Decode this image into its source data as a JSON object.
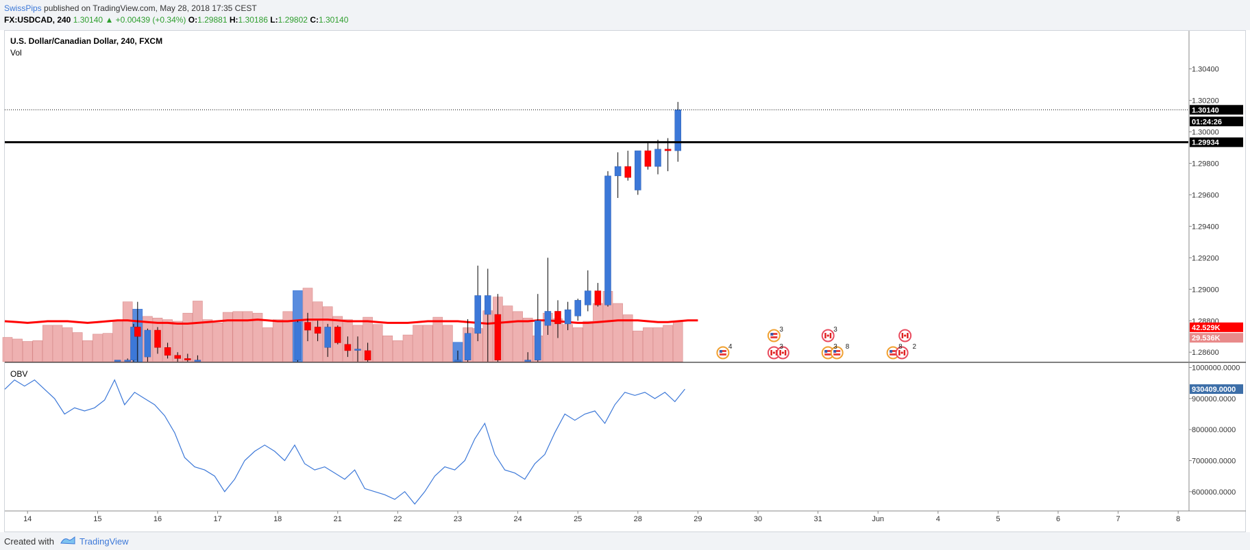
{
  "header": {
    "author": "SwissPips",
    "published": "published on TradingView.com, May 28, 2018 17:35 CEST",
    "symbol": "FX:USDCAD, 240",
    "last": "1.30140",
    "change_arrow": "▲",
    "change": "+0.00439 (+0.34%)",
    "o_label": "O:",
    "o": "1.29881",
    "h_label": "H:",
    "h": "1.30186",
    "l_label": "L:",
    "l": "1.29802",
    "c_label": "C:",
    "c": "1.30140"
  },
  "footer": {
    "created_with": "Created with",
    "brand": "TradingView"
  },
  "colors": {
    "up": "#3c78d8",
    "down": "#ff0000",
    "ma": "#ff0000",
    "obv": "#3c78d8",
    "volume": "#eba3a3",
    "volume_blue": "#3c78d8",
    "resistance": "#000000"
  },
  "chart_data": {
    "type": "candlestick",
    "title": "U.S. Dollar/Canadian Dollar, 240, FXCM",
    "overlay_label": "Vol",
    "indicator_label": "OBV",
    "price_ylim": [
      1.2854,
      1.3062
    ],
    "price_ticks": [
      "1.30400",
      "1.30200",
      "1.30000",
      "1.29800",
      "1.29600",
      "1.29400",
      "1.29200",
      "1.29000",
      "1.28800",
      "1.28600"
    ],
    "obv_ylim": [
      540000,
      1010000
    ],
    "obv_ticks": [
      "1000000.0000",
      "900000.0000",
      "800000.0000",
      "700000.0000",
      "600000.0000"
    ],
    "x_labels": [
      "14",
      "15",
      "16",
      "17",
      "18",
      "21",
      "22",
      "23",
      "24",
      "25",
      "28",
      "29",
      "30",
      "31",
      "Jun",
      "4",
      "5",
      "6",
      "7",
      "8"
    ],
    "x_label_bar": [
      2,
      9,
      15,
      21,
      27,
      33,
      39,
      45,
      51,
      57,
      63,
      69,
      75,
      81,
      87,
      93,
      99,
      105,
      111,
      117
    ],
    "resistance": 1.29934,
    "resistance_label": "1.29934",
    "last_price_label": "1.30140",
    "countdown": "01:24:26",
    "last_price": 1.3014,
    "vol_labels": [
      "42.529K",
      "29.536K"
    ],
    "vol_label_values": [
      42.529,
      29.536
    ],
    "vol_ylim": [
      0,
      100
    ],
    "obv_last_label": "930409.0000",
    "obv_last": 930409,
    "candles": [
      {
        "i": 11,
        "o": 1.2855,
        "h": 1.2855,
        "l": 1.2855,
        "c": 1.2855
      },
      {
        "i": 12,
        "o": 1.2855,
        "h": 1.2856,
        "l": 1.2854,
        "c": 1.2855
      },
      {
        "i": 12.6,
        "o": 1.2855,
        "h": 1.2878,
        "l": 1.2854,
        "c": 1.2876
      },
      {
        "i": 13,
        "o": 1.2876,
        "h": 1.2892,
        "l": 1.2854,
        "c": 1.287
      },
      {
        "i": 14,
        "o": 1.2857,
        "h": 1.2875,
        "l": 1.2854,
        "c": 1.2874
      },
      {
        "i": 15,
        "o": 1.2874,
        "h": 1.2876,
        "l": 1.2859,
        "c": 1.2863
      },
      {
        "i": 16,
        "o": 1.2863,
        "h": 1.2866,
        "l": 1.2856,
        "c": 1.2858
      },
      {
        "i": 17,
        "o": 1.2858,
        "h": 1.286,
        "l": 1.2854,
        "c": 1.2856
      },
      {
        "i": 18,
        "o": 1.2856,
        "h": 1.2859,
        "l": 1.2854,
        "c": 1.2855
      },
      {
        "i": 19,
        "o": 1.2855,
        "h": 1.2858,
        "l": 1.2854,
        "c": 1.2855
      },
      {
        "i": 29,
        "o": 1.2855,
        "h": 1.288,
        "l": 1.2854,
        "c": 1.2879
      },
      {
        "i": 30,
        "o": 1.2879,
        "h": 1.2885,
        "l": 1.2867,
        "c": 1.2874
      },
      {
        "i": 31,
        "o": 1.2876,
        "h": 1.288,
        "l": 1.2867,
        "c": 1.2872
      },
      {
        "i": 32,
        "o": 1.2863,
        "h": 1.2878,
        "l": 1.2857,
        "c": 1.2876
      },
      {
        "i": 33,
        "o": 1.2876,
        "h": 1.2877,
        "l": 1.2865,
        "c": 1.2866
      },
      {
        "i": 34,
        "o": 1.2865,
        "h": 1.287,
        "l": 1.2857,
        "c": 1.2861
      },
      {
        "i": 35,
        "o": 1.2862,
        "h": 1.287,
        "l": 1.2854,
        "c": 1.2862
      },
      {
        "i": 36,
        "o": 1.2861,
        "h": 1.2866,
        "l": 1.2854,
        "c": 1.2855
      },
      {
        "i": 45,
        "o": 1.2855,
        "h": 1.2861,
        "l": 1.2854,
        "c": 1.2855
      },
      {
        "i": 46,
        "o": 1.2855,
        "h": 1.2881,
        "l": 1.2854,
        "c": 1.2872
      },
      {
        "i": 47,
        "o": 1.2872,
        "h": 1.2915,
        "l": 1.2867,
        "c": 1.2896
      },
      {
        "i": 48,
        "o": 1.2884,
        "h": 1.2913,
        "l": 1.2854,
        "c": 1.2896
      },
      {
        "i": 49,
        "o": 1.2884,
        "h": 1.2897,
        "l": 1.2854,
        "c": 1.2855
      },
      {
        "i": 52,
        "o": 1.2855,
        "h": 1.286,
        "l": 1.2854,
        "c": 1.2855
      },
      {
        "i": 53,
        "o": 1.2855,
        "h": 1.2897,
        "l": 1.2854,
        "c": 1.288
      },
      {
        "i": 54,
        "o": 1.2877,
        "h": 1.292,
        "l": 1.2871,
        "c": 1.2886
      },
      {
        "i": 55,
        "o": 1.2886,
        "h": 1.2893,
        "l": 1.2869,
        "c": 1.2878
      },
      {
        "i": 56,
        "o": 1.2878,
        "h": 1.2892,
        "l": 1.2874,
        "c": 1.2887
      },
      {
        "i": 57,
        "o": 1.2883,
        "h": 1.2894,
        "l": 1.288,
        "c": 1.2893
      },
      {
        "i": 58,
        "o": 1.289,
        "h": 1.2912,
        "l": 1.2886,
        "c": 1.2899
      },
      {
        "i": 59,
        "o": 1.2899,
        "h": 1.2904,
        "l": 1.2889,
        "c": 1.289
      },
      {
        "i": 60,
        "o": 1.289,
        "h": 1.2975,
        "l": 1.2889,
        "c": 1.2972
      },
      {
        "i": 61,
        "o": 1.2972,
        "h": 1.2987,
        "l": 1.2958,
        "c": 1.2978
      },
      {
        "i": 62,
        "o": 1.2978,
        "h": 1.2988,
        "l": 1.2969,
        "c": 1.2971
      },
      {
        "i": 63,
        "o": 1.2963,
        "h": 1.2988,
        "l": 1.296,
        "c": 1.2988
      },
      {
        "i": 64,
        "o": 1.2988,
        "h": 1.2993,
        "l": 1.2976,
        "c": 1.2978
      },
      {
        "i": 65,
        "o": 1.2978,
        "h": 1.2995,
        "l": 1.2973,
        "c": 1.2989
      },
      {
        "i": 66,
        "o": 1.2989,
        "h": 1.2996,
        "l": 1.2975,
        "c": 1.2988
      },
      {
        "i": 67,
        "o": 1.2988,
        "h": 1.3019,
        "l": 1.2981,
        "c": 1.3014
      }
    ],
    "volume": [
      30,
      28,
      25,
      26,
      45,
      45,
      42,
      36,
      26,
      34,
      35,
      50,
      74,
      65,
      56,
      54,
      52,
      50,
      60,
      75,
      52,
      48,
      61,
      62,
      62,
      60,
      42,
      52,
      62,
      88,
      91,
      74,
      68,
      56,
      52,
      45,
      55,
      46,
      32,
      26,
      33,
      45,
      45,
      55,
      45,
      24,
      42,
      41,
      63,
      80,
      69,
      62,
      54,
      32,
      60,
      53,
      46,
      42,
      50,
      72,
      87,
      72,
      58,
      38,
      42,
      42,
      45,
      50
    ],
    "volume_blue": [
      13,
      29,
      45
    ],
    "ma": [
      50,
      49,
      48,
      49,
      50,
      50,
      50,
      49,
      48,
      49,
      50,
      51,
      51,
      50,
      49,
      48,
      48,
      47,
      47,
      48,
      49,
      50,
      51,
      51,
      51,
      52,
      51,
      50,
      50,
      51,
      52,
      52,
      52,
      51,
      50,
      50,
      50,
      49,
      48,
      48,
      48,
      49,
      50,
      50,
      50,
      50,
      49,
      48,
      47,
      48,
      49,
      50,
      50,
      51,
      51,
      50,
      49,
      48,
      48,
      49,
      50,
      51,
      51,
      51,
      50,
      49,
      49,
      50,
      51,
      51
    ],
    "obv": [
      930000,
      960000,
      940000,
      960000,
      930000,
      900000,
      850000,
      870000,
      860000,
      870000,
      895000,
      960000,
      880000,
      920000,
      900000,
      880000,
      845000,
      790000,
      710000,
      680000,
      670000,
      650000,
      600000,
      640000,
      700000,
      730000,
      750000,
      730000,
      700000,
      750000,
      690000,
      670000,
      680000,
      660000,
      640000,
      670000,
      610000,
      600000,
      590000,
      575000,
      600000,
      560000,
      600000,
      650000,
      680000,
      670000,
      700000,
      770000,
      820000,
      720000,
      670000,
      660000,
      640000,
      690000,
      720000,
      790000,
      850000,
      830000,
      850000,
      860000,
      820000,
      880000,
      920000,
      910000,
      920000,
      900000,
      920000,
      890000,
      930409
    ]
  },
  "events": [
    {
      "bar": 71.5,
      "row": 0,
      "count": "4",
      "flags": [
        "us"
      ]
    },
    {
      "bar": 76.6,
      "row": 1,
      "count": "3",
      "flags": [
        "us"
      ]
    },
    {
      "bar": 76.6,
      "row": 0,
      "count": "3",
      "flags": [
        "ca",
        "ca"
      ]
    },
    {
      "bar": 82.0,
      "row": 1,
      "count": "3",
      "flags": [
        "ca"
      ]
    },
    {
      "bar": 82.0,
      "row": 0,
      "count": "3",
      "flags": [
        "us",
        "us"
      ]
    },
    {
      "bar": 83.2,
      "row": 0,
      "count": "8",
      "flags": []
    },
    {
      "bar": 88.5,
      "row": 0,
      "count": "8",
      "flags": [
        "us",
        "ca"
      ]
    },
    {
      "bar": 89.7,
      "row": 1,
      "count": "",
      "flags": [
        "ca"
      ]
    },
    {
      "bar": 89.9,
      "row": 0,
      "count": "2",
      "flags": []
    }
  ]
}
